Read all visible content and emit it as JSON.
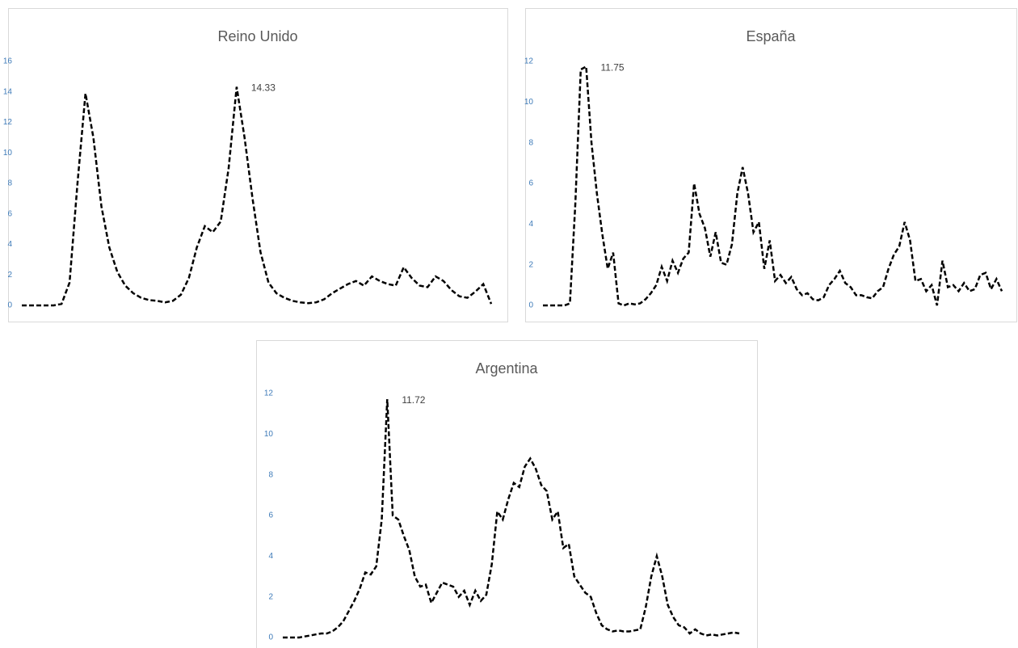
{
  "chart_data": [
    {
      "type": "line",
      "title": "Reino Unido",
      "color": "#000000",
      "values": [
        0,
        0,
        0,
        0,
        0,
        0.1,
        1.5,
        8,
        13.9,
        11,
        6.5,
        3.8,
        2.2,
        1.3,
        0.8,
        0.5,
        0.35,
        0.3,
        0.2,
        0.3,
        0.7,
        1.8,
        3.8,
        5.2,
        4.8,
        5.5,
        9,
        14.33,
        11,
        7,
        3.5,
        1.5,
        0.8,
        0.5,
        0.3,
        0.2,
        0.15,
        0.2,
        0.4,
        0.8,
        1.1,
        1.4,
        1.6,
        1.3,
        1.9,
        1.6,
        1.4,
        1.3,
        2.5,
        1.8,
        1.3,
        1.2,
        1.9,
        1.6,
        1.0,
        0.6,
        0.5,
        0.9,
        1.4,
        0.1
      ],
      "value_labels": [
        null,
        null,
        null,
        null,
        null,
        null,
        null,
        null,
        null,
        null,
        null,
        null,
        null,
        null,
        null,
        null,
        null,
        null,
        null,
        null,
        null,
        null,
        null,
        null,
        null,
        null,
        null,
        "14.33",
        null,
        null,
        null,
        null,
        null,
        null,
        null,
        null,
        null,
        null,
        null,
        null,
        null,
        null,
        null,
        null,
        null,
        null,
        null,
        null,
        null,
        null,
        null,
        null,
        null,
        null,
        null,
        null,
        null,
        null,
        null,
        null
      ],
      "ylim": [
        0,
        16
      ],
      "yticks": [
        0,
        2,
        4,
        6,
        8,
        10,
        12,
        14,
        16
      ]
    },
    {
      "type": "line",
      "title": "España",
      "color": "#000000",
      "values": [
        0,
        0,
        0,
        0,
        0,
        0.1,
        5,
        11.6,
        11.75,
        8,
        5.5,
        3.5,
        1.8,
        2.6,
        0.1,
        0,
        0.1,
        0.05,
        0.1,
        0.3,
        0.6,
        1.0,
        1.9,
        1.2,
        2.2,
        1.6,
        2.3,
        2.6,
        6,
        4.5,
        3.8,
        2.4,
        3.6,
        2.1,
        2.0,
        3.0,
        5.5,
        6.8,
        5.5,
        3.6,
        4.1,
        1.8,
        3.2,
        1.2,
        1.5,
        1.1,
        1.4,
        0.8,
        0.5,
        0.6,
        0.3,
        0.25,
        0.4,
        1.0,
        1.3,
        1.7,
        1.1,
        0.9,
        0.5,
        0.5,
        0.4,
        0.35,
        0.7,
        0.9,
        1.8,
        2.5,
        2.9,
        4.1,
        3.2,
        1.2,
        1.3,
        0.7,
        1.0,
        0,
        2.2,
        0.9,
        1.0,
        0.7,
        1.1,
        0.7,
        0.8,
        1.5,
        1.6,
        0.8,
        1.3,
        0.7
      ],
      "value_labels": [
        null,
        null,
        null,
        null,
        null,
        null,
        null,
        null,
        "11.75",
        null,
        null,
        null,
        null,
        null,
        null,
        null,
        null,
        null,
        null,
        null,
        null,
        null,
        null,
        null,
        null,
        null,
        null,
        null,
        null,
        null,
        null,
        null,
        null,
        null,
        null,
        null,
        null,
        null,
        null,
        null,
        null,
        null,
        null,
        null,
        null,
        null,
        null,
        null,
        null,
        null,
        null,
        null,
        null,
        null,
        null,
        null,
        null,
        null,
        null,
        null,
        null,
        null,
        null,
        null,
        null,
        null,
        null,
        null,
        null,
        null,
        null,
        null,
        null,
        null,
        null,
        null,
        null,
        null,
        null,
        null,
        null,
        null,
        null,
        null,
        null,
        null
      ],
      "ylim": [
        0,
        12
      ],
      "yticks": [
        0,
        2,
        4,
        6,
        8,
        10,
        12
      ]
    },
    {
      "type": "line",
      "title": "Argentina",
      "color": "#000000",
      "values": [
        0,
        0,
        0,
        0,
        0.05,
        0.1,
        0.15,
        0.2,
        0.2,
        0.3,
        0.5,
        0.8,
        1.3,
        1.8,
        2.4,
        3.2,
        3.1,
        3.5,
        5.8,
        11.72,
        6,
        5.8,
        5.0,
        4.3,
        3.0,
        2.5,
        2.6,
        1.7,
        2.2,
        2.7,
        2.6,
        2.5,
        2.0,
        2.3,
        1.6,
        2.3,
        1.8,
        2.1,
        3.6,
        6.2,
        5.8,
        6.8,
        7.6,
        7.4,
        8.4,
        8.8,
        8.3,
        7.5,
        7.2,
        5.8,
        6.2,
        4.4,
        4.6,
        3.0,
        2.6,
        2.2,
        2.0,
        1.2,
        0.6,
        0.4,
        0.3,
        0.35,
        0.3,
        0.3,
        0.35,
        0.4,
        1.5,
        3.0,
        4.0,
        3.0,
        1.6,
        1.0,
        0.6,
        0.5,
        0.2,
        0.4,
        0.2,
        0.1,
        0.15,
        0.1,
        0.15,
        0.2,
        0.25,
        0.2
      ],
      "value_labels": [
        null,
        null,
        null,
        null,
        null,
        null,
        null,
        null,
        null,
        null,
        null,
        null,
        null,
        null,
        null,
        null,
        null,
        null,
        null,
        "11.72",
        null,
        null,
        null,
        null,
        null,
        null,
        null,
        null,
        null,
        null,
        null,
        null,
        null,
        null,
        null,
        null,
        null,
        null,
        null,
        null,
        null,
        null,
        null,
        null,
        null,
        null,
        null,
        null,
        null,
        null,
        null,
        null,
        null,
        null,
        null,
        null,
        null,
        null,
        null,
        null,
        null,
        null,
        null,
        null,
        null,
        null,
        null,
        null,
        null,
        null,
        null,
        null,
        null,
        null,
        null,
        null,
        null,
        null,
        null,
        null,
        null,
        null,
        null,
        null
      ],
      "ylim": [
        0,
        12
      ],
      "yticks": [
        0,
        2,
        4,
        6,
        8,
        10,
        12
      ]
    }
  ]
}
